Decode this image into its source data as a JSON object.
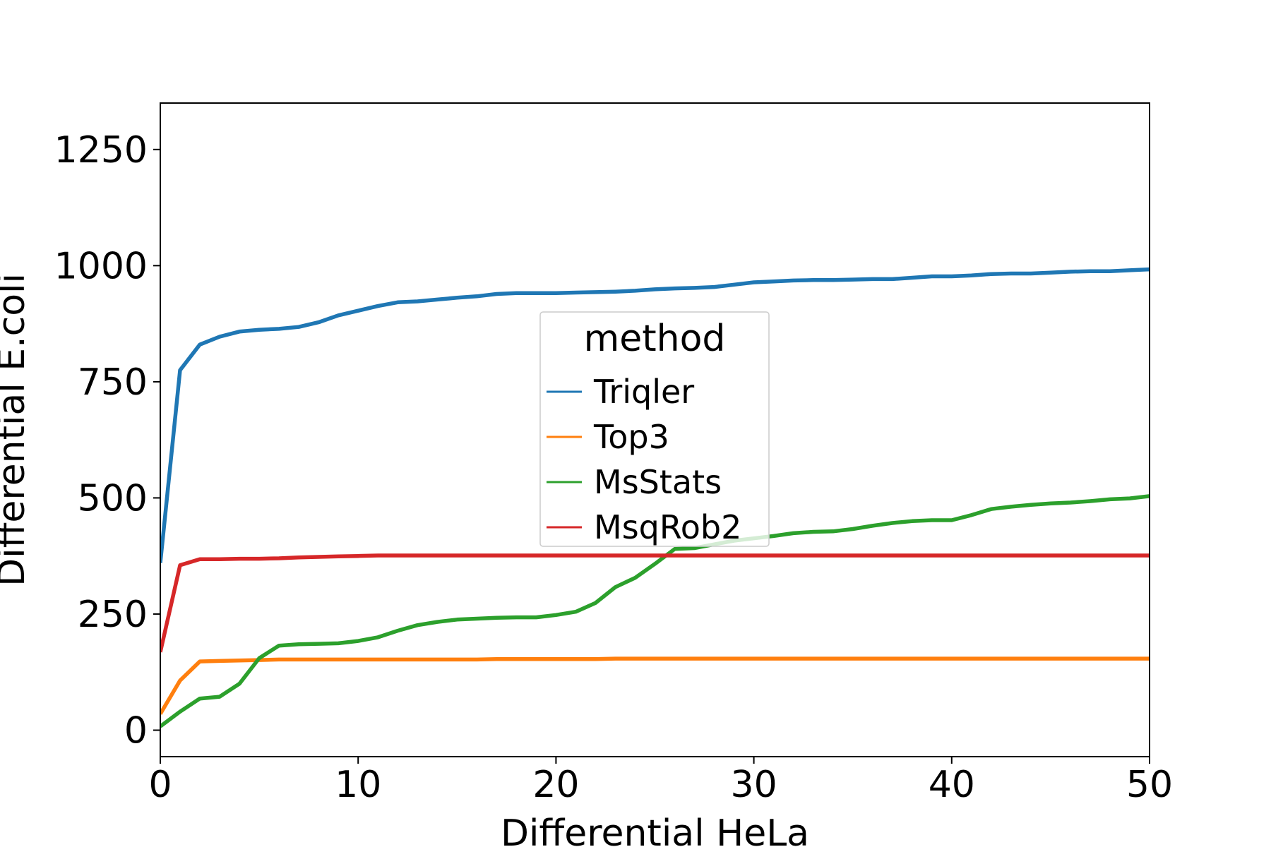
{
  "chart_data": {
    "type": "line",
    "title": "",
    "xlabel": "Differential HeLa",
    "ylabel": "Differential E.coli",
    "xlim": [
      0,
      50
    ],
    "ylim": [
      -57,
      1350
    ],
    "xticks": [
      0,
      10,
      20,
      30,
      40,
      50
    ],
    "yticks": [
      0,
      250,
      500,
      750,
      1000,
      1250
    ],
    "grid": false,
    "legend": {
      "title": "method",
      "placement": "center"
    },
    "x": [
      0,
      1,
      2,
      3,
      4,
      5,
      6,
      7,
      8,
      9,
      10,
      11,
      12,
      13,
      14,
      15,
      16,
      17,
      18,
      19,
      20,
      21,
      22,
      23,
      24,
      25,
      26,
      27,
      28,
      29,
      30,
      31,
      32,
      33,
      34,
      35,
      36,
      37,
      38,
      39,
      40,
      41,
      42,
      43,
      44,
      45,
      46,
      47,
      48,
      49,
      50
    ],
    "series": [
      {
        "name": "Triqler",
        "color": "#1f77b4",
        "values": [
          360,
          775,
          830,
          847,
          858,
          862,
          864,
          868,
          878,
          893,
          903,
          913,
          921,
          923,
          927,
          931,
          934,
          939,
          941,
          941,
          941,
          942,
          943,
          944,
          946,
          949,
          951,
          952,
          954,
          959,
          964,
          966,
          968,
          969,
          969,
          970,
          971,
          971,
          974,
          977,
          977,
          979,
          982,
          983,
          983,
          985,
          987,
          988,
          988,
          990,
          992
        ]
      },
      {
        "name": "Top3",
        "color": "#ff7f0e",
        "values": [
          35,
          107,
          148,
          149,
          150,
          151,
          152,
          152,
          152,
          152,
          152,
          152,
          152,
          152,
          152,
          152,
          152,
          153,
          153,
          153,
          153,
          153,
          153,
          154,
          154,
          154,
          154,
          154,
          154,
          154,
          154,
          154,
          154,
          154,
          154,
          154,
          154,
          154,
          154,
          154,
          154,
          154,
          154,
          154,
          154,
          154,
          154,
          154,
          154,
          154,
          154
        ]
      },
      {
        "name": "MsStats",
        "color": "#2ca02c",
        "values": [
          8,
          40,
          68,
          72,
          100,
          155,
          182,
          185,
          186,
          187,
          192,
          200,
          214,
          226,
          233,
          238,
          240,
          242,
          243,
          243,
          248,
          255,
          274,
          308,
          328,
          358,
          390,
          392,
          400,
          408,
          413,
          418,
          424,
          427,
          428,
          433,
          440,
          446,
          450,
          452,
          452,
          463,
          476,
          481,
          485,
          488,
          490,
          493,
          497,
          499,
          504
        ]
      },
      {
        "name": "MsqRob2",
        "color": "#d62728",
        "values": [
          168,
          355,
          368,
          368,
          369,
          369,
          370,
          372,
          373,
          374,
          375,
          376,
          376,
          376,
          376,
          376,
          376,
          376,
          376,
          376,
          376,
          376,
          376,
          376,
          376,
          376,
          376,
          376,
          376,
          376,
          376,
          376,
          376,
          376,
          376,
          376,
          376,
          376,
          376,
          376,
          376,
          376,
          376,
          376,
          376,
          376,
          376,
          376,
          376,
          376,
          376
        ]
      }
    ]
  }
}
